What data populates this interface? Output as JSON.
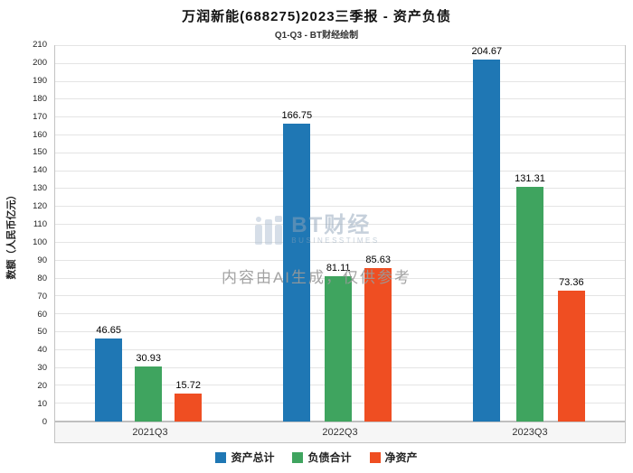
{
  "header": {
    "title": "万润新能(688275)2023三季报 - 资产负债",
    "subtitle": "Q1-Q3 - BT财经绘制"
  },
  "chart_data": {
    "type": "bar",
    "categories": [
      "2021Q3",
      "2022Q3",
      "2023Q3"
    ],
    "series": [
      {
        "name": "资产总计",
        "color": "#1f77b4",
        "values": [
          46.65,
          166.75,
          204.67
        ]
      },
      {
        "name": "负债合计",
        "color": "#3fa45f",
        "values": [
          30.93,
          81.11,
          131.31
        ]
      },
      {
        "name": "净资产",
        "color": "#ef4e22",
        "values": [
          15.72,
          85.63,
          73.36
        ]
      }
    ],
    "title": "万润新能(688275)2023三季报 - 资产负债",
    "xlabel": "",
    "ylabel": "数额（人民币亿元）",
    "ylim": [
      0,
      210
    ],
    "ytick_step": 10,
    "grid": true,
    "legend_position": "bottom"
  },
  "watermark": {
    "brand": "BT财经",
    "brand_sub": "BUSINESSTIMES",
    "note": "内容由AI生成，仅供参考"
  }
}
